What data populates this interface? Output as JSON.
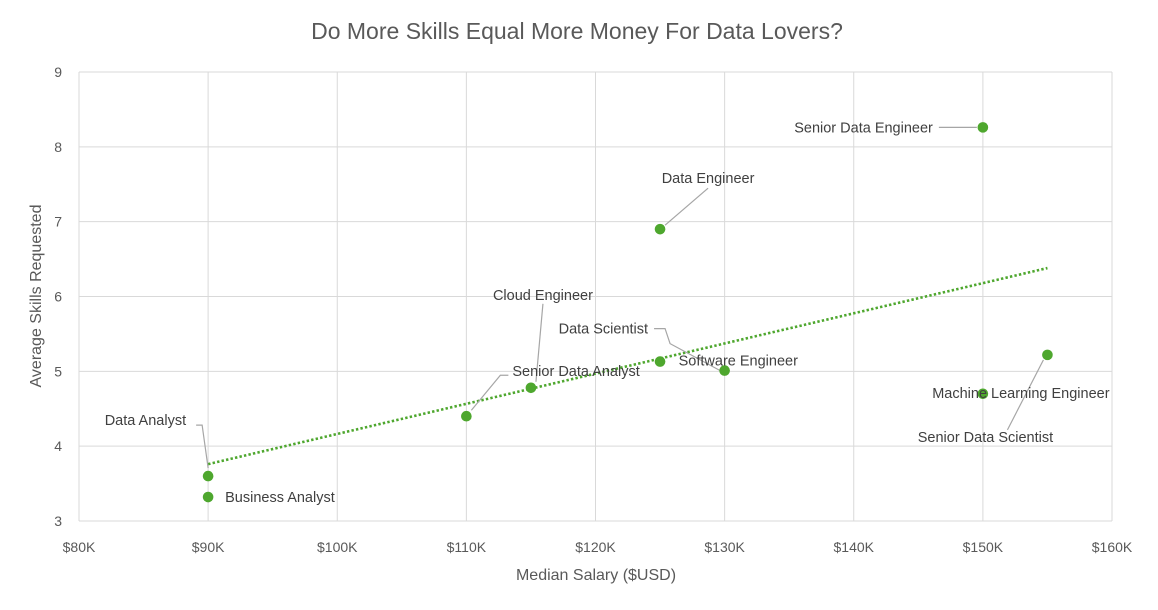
{
  "chart_data": {
    "type": "scatter",
    "title": "Do More Skills Equal More Money For Data Lovers?",
    "xlabel": "Median Salary ($USD)",
    "ylabel": "Average Skills Requested",
    "xlim": [
      80000,
      160000
    ],
    "ylim": [
      3,
      9
    ],
    "x_ticks": [
      "$80K",
      "$90K",
      "$100K",
      "$110K",
      "$120K",
      "$130K",
      "$140K",
      "$150K",
      "$160K"
    ],
    "y_ticks": [
      "3",
      "4",
      "5",
      "6",
      "7",
      "8",
      "9"
    ],
    "grid": true,
    "point_color": "#4ea72e",
    "trendline": {
      "type": "linear",
      "style": "dotted",
      "x": [
        90000,
        155000
      ],
      "y": [
        3.76,
        6.38
      ]
    },
    "points": [
      {
        "label": "Data Analyst",
        "x": 90000,
        "y": 3.6
      },
      {
        "label": "Business Analyst",
        "x": 90000,
        "y": 3.32
      },
      {
        "label": "Senior Data Analyst",
        "x": 110000,
        "y": 4.4
      },
      {
        "label": "Cloud Engineer",
        "x": 115000,
        "y": 4.78
      },
      {
        "label": "Data Scientist",
        "x": 125000,
        "y": 5.13
      },
      {
        "label": "Data Engineer",
        "x": 125000,
        "y": 6.9
      },
      {
        "label": "Software Engineer",
        "x": 130000,
        "y": 5.01
      },
      {
        "label": "Senior Data Engineer",
        "x": 150000,
        "y": 8.26
      },
      {
        "label": "Machine Learning Engineer",
        "x": 150000,
        "y": 4.7
      },
      {
        "label": "Senior Data Scientist",
        "x": 155000,
        "y": 5.22
      }
    ]
  }
}
